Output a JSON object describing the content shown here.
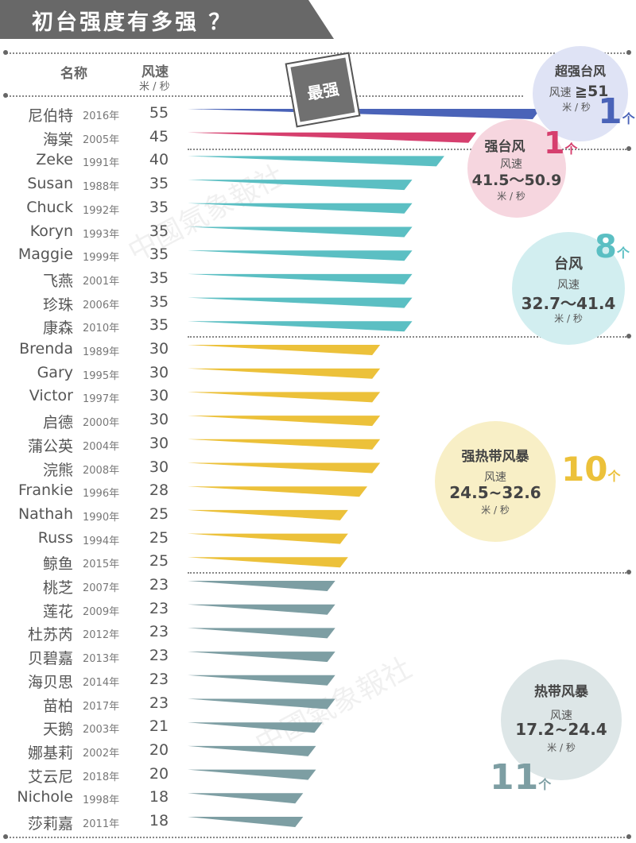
{
  "title": "初台强度有多强 ？",
  "headers": {
    "name": "名称",
    "speed": "风速",
    "unit": "米 / 秒"
  },
  "badge": "最强",
  "watermark": "中國氣象報社",
  "categories": {
    "super": {
      "name": "超强台风",
      "speed_label": "风速",
      "range": "≧51",
      "unit": "米 / 秒",
      "count": "1",
      "count_unit": "个",
      "color": "#4a63b8",
      "bubble_color": "#dfe3f5"
    },
    "strong": {
      "name": "强台风",
      "speed_label": "风速",
      "range": "41.5～50.9",
      "unit": "米 / 秒",
      "count": "1",
      "count_unit": "个",
      "color": "#d63f6e",
      "bubble_color": "#f6d6df"
    },
    "typhoon": {
      "name": "台风",
      "speed_label": "风速",
      "range": "32.7～41.4",
      "unit": "米 / 秒",
      "count": "8",
      "count_unit": "个",
      "color": "#5bbfc3",
      "bubble_color": "#d2eef0"
    },
    "strong_storm": {
      "name": "强热带风暴",
      "speed_label": "风速",
      "range": "24.5~32.6",
      "unit": "米 / 秒",
      "count": "10",
      "count_unit": "个",
      "color": "#ecc13a",
      "bubble_color": "#f8efc6"
    },
    "storm": {
      "name": "热带风暴",
      "speed_label": "风速",
      "range": "17.2~24.4",
      "unit": "米 / 秒",
      "count": "11",
      "count_unit": "个",
      "color": "#7d9ea3",
      "bubble_color": "#dde6e7"
    }
  },
  "chart_data": {
    "type": "bar",
    "orientation": "horizontal",
    "xlim": [
      0,
      55
    ],
    "rows": [
      {
        "name": "尼伯特",
        "year": "2016年",
        "speed": 55,
        "category": "super"
      },
      {
        "name": "海棠",
        "year": "2005年",
        "speed": 45,
        "category": "strong"
      },
      {
        "name": "Zeke",
        "year": "1991年",
        "speed": 40,
        "category": "typhoon"
      },
      {
        "name": "Susan",
        "year": "1988年",
        "speed": 35,
        "category": "typhoon"
      },
      {
        "name": "Chuck",
        "year": "1992年",
        "speed": 35,
        "category": "typhoon"
      },
      {
        "name": "Koryn",
        "year": "1993年",
        "speed": 35,
        "category": "typhoon"
      },
      {
        "name": "Maggie",
        "year": "1999年",
        "speed": 35,
        "category": "typhoon"
      },
      {
        "name": "飞燕",
        "year": "2001年",
        "speed": 35,
        "category": "typhoon"
      },
      {
        "name": "珍珠",
        "year": "2006年",
        "speed": 35,
        "category": "typhoon"
      },
      {
        "name": "康森",
        "year": "2010年",
        "speed": 35,
        "category": "typhoon"
      },
      {
        "name": "Brenda",
        "year": "1989年",
        "speed": 30,
        "category": "strong_storm"
      },
      {
        "name": "Gary",
        "year": "1995年",
        "speed": 30,
        "category": "strong_storm"
      },
      {
        "name": "Victor",
        "year": "1997年",
        "speed": 30,
        "category": "strong_storm"
      },
      {
        "name": "启德",
        "year": "2000年",
        "speed": 30,
        "category": "strong_storm"
      },
      {
        "name": "蒲公英",
        "year": "2004年",
        "speed": 30,
        "category": "strong_storm"
      },
      {
        "name": "浣熊",
        "year": "2008年",
        "speed": 30,
        "category": "strong_storm"
      },
      {
        "name": "Frankie",
        "year": "1996年",
        "speed": 28,
        "category": "strong_storm"
      },
      {
        "name": "Nathah",
        "year": "1990年",
        "speed": 25,
        "category": "strong_storm"
      },
      {
        "name": "Russ",
        "year": "1994年",
        "speed": 25,
        "category": "strong_storm"
      },
      {
        "name": "鲸鱼",
        "year": "2015年",
        "speed": 25,
        "category": "strong_storm"
      },
      {
        "name": "桃芝",
        "year": "2007年",
        "speed": 23,
        "category": "storm"
      },
      {
        "name": "莲花",
        "year": "2009年",
        "speed": 23,
        "category": "storm"
      },
      {
        "name": "杜苏芮",
        "year": "2012年",
        "speed": 23,
        "category": "storm"
      },
      {
        "name": "贝碧嘉",
        "year": "2013年",
        "speed": 23,
        "category": "storm"
      },
      {
        "name": "海贝思",
        "year": "2014年",
        "speed": 23,
        "category": "storm"
      },
      {
        "name": "苗柏",
        "year": "2017年",
        "speed": 23,
        "category": "storm"
      },
      {
        "name": "天鹅",
        "year": "2003年",
        "speed": 21,
        "category": "storm"
      },
      {
        "name": "娜基莉",
        "year": "2002年",
        "speed": 20,
        "category": "storm"
      },
      {
        "name": "艾云尼",
        "year": "2018年",
        "speed": 20,
        "category": "storm"
      },
      {
        "name": "Nichole",
        "year": "1998年",
        "speed": 18,
        "category": "storm"
      },
      {
        "name": "莎莉嘉",
        "year": "2011年",
        "speed": 18,
        "category": "storm"
      }
    ]
  }
}
